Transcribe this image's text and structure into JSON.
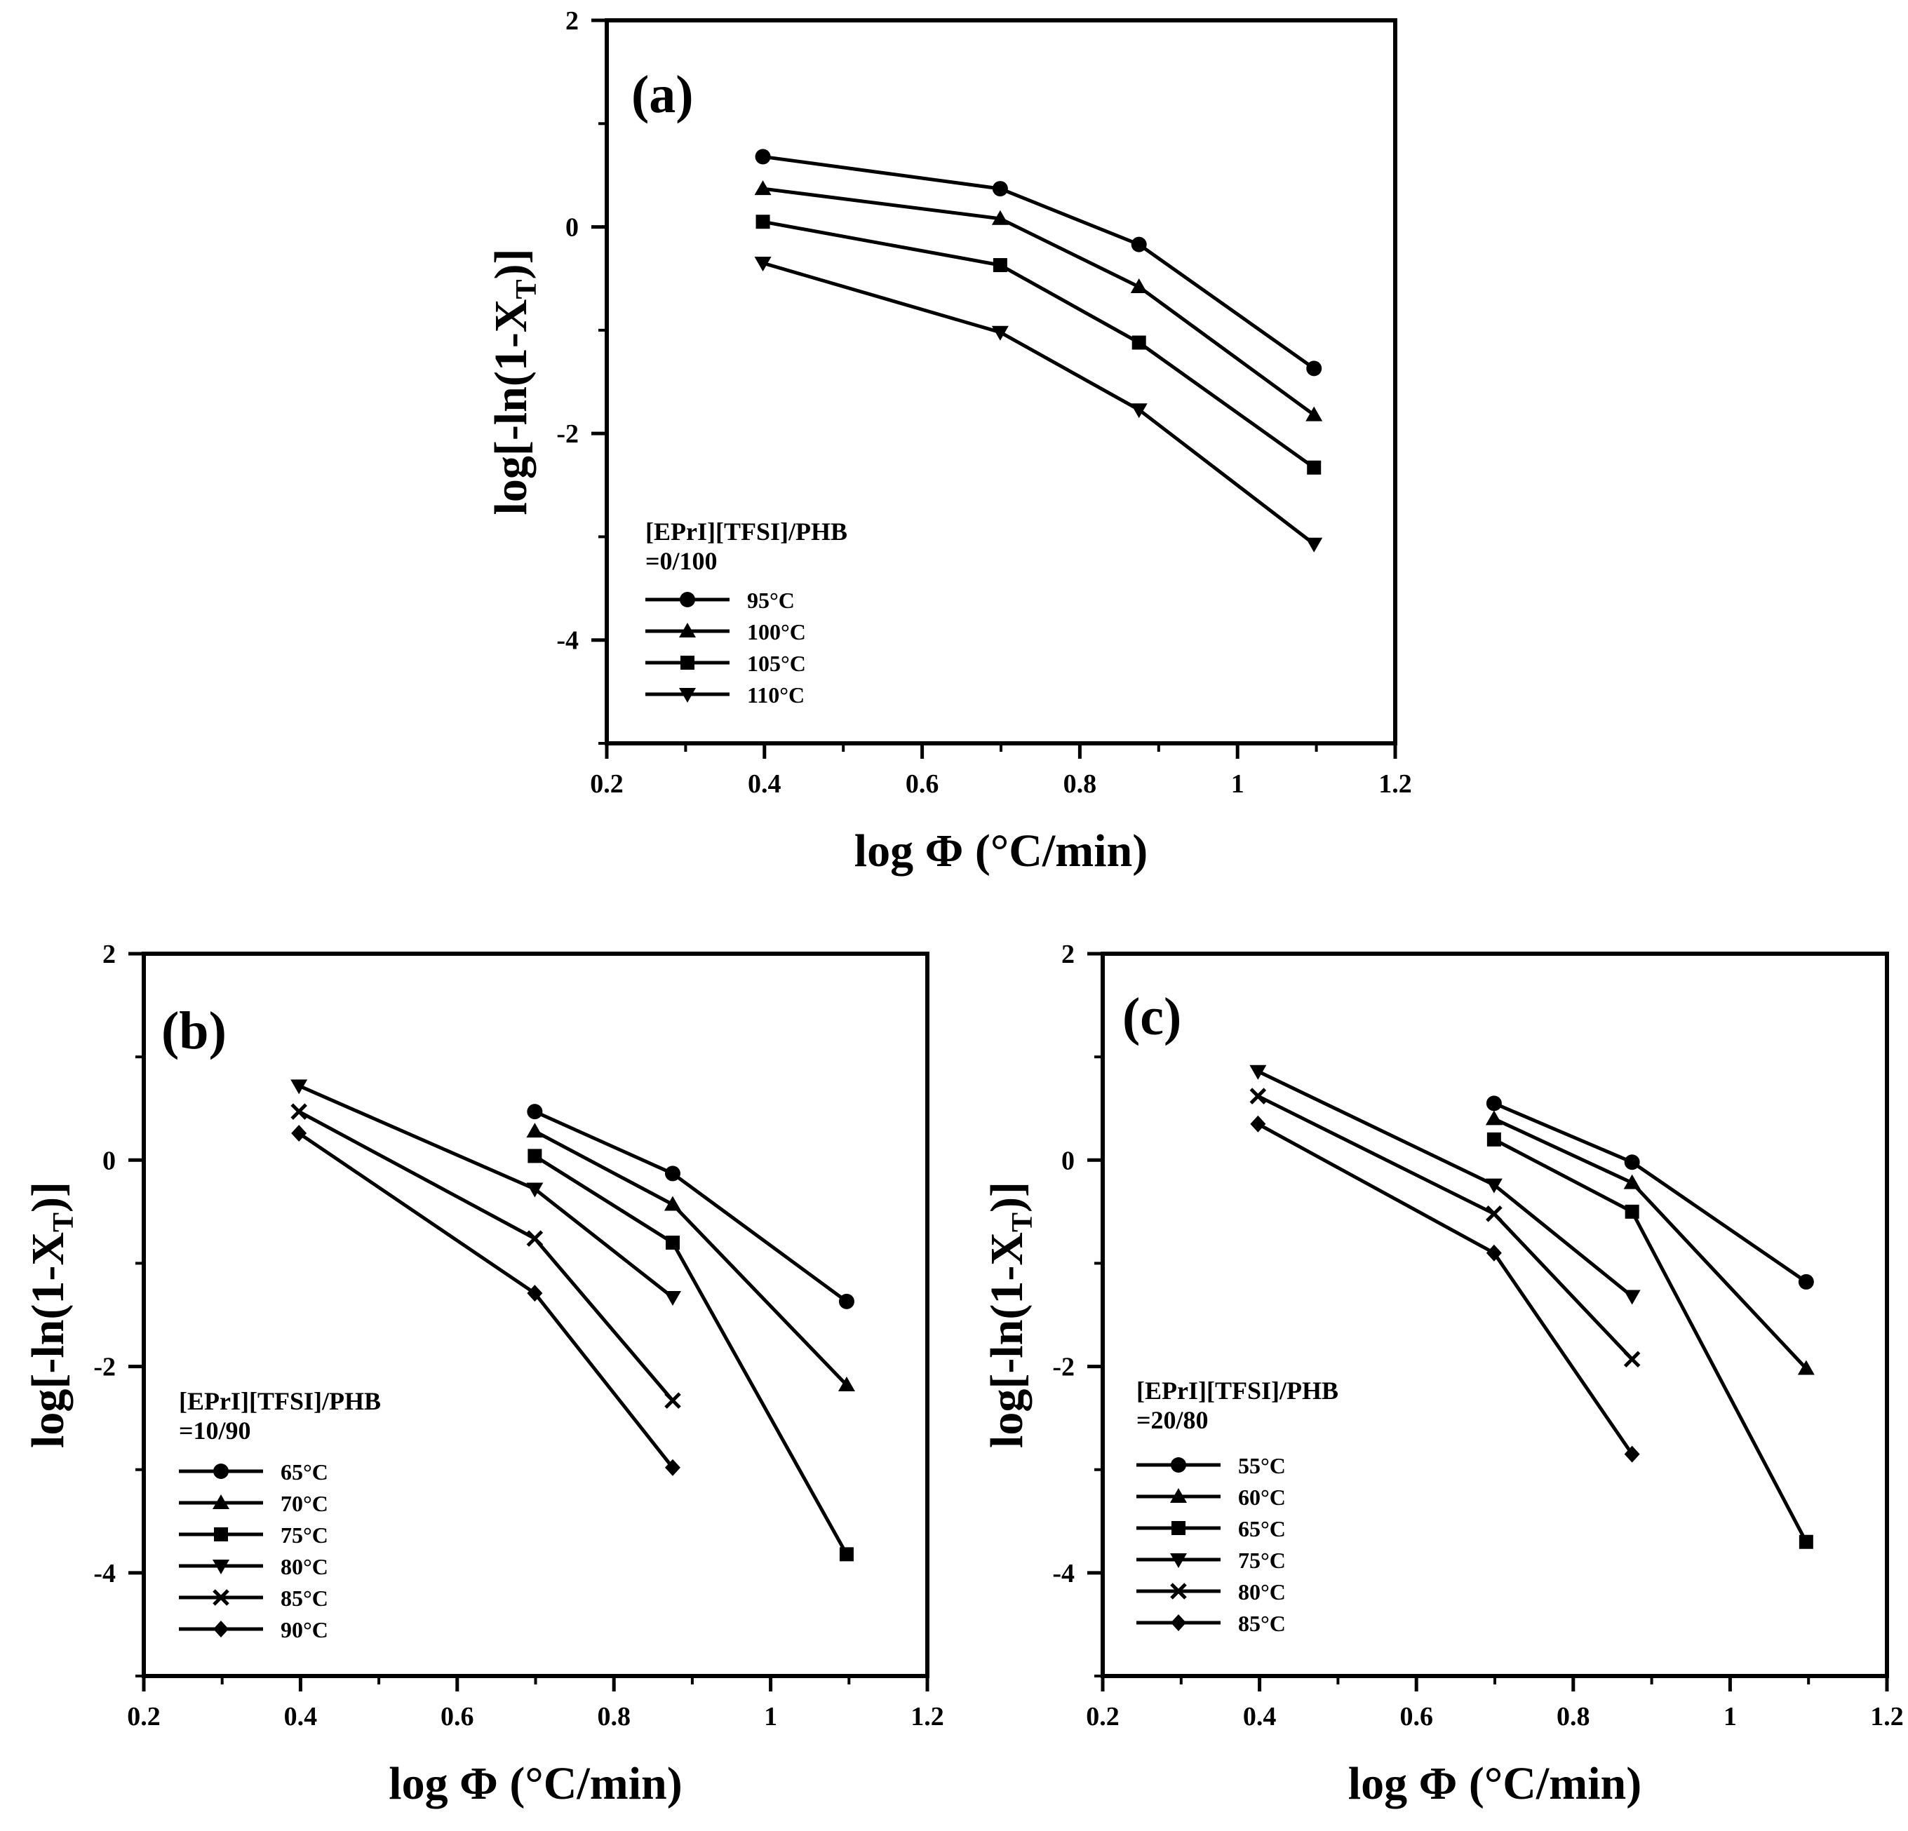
{
  "chart_data": [
    {
      "id": "a",
      "type": "line",
      "panel_label": "(a)",
      "xlabel": "log Φ (°C/min)",
      "ylabel": "log[-ln(1-X",
      "ylabel_sub": "T",
      "ylabel_end": ")]",
      "xlim": [
        0.2,
        1.2
      ],
      "ylim": [
        -5,
        2
      ],
      "xticks": [
        0.2,
        0.4,
        0.6,
        0.8,
        1,
        1.2
      ],
      "xtick_labels": [
        "0.2",
        "0.4",
        "0.6",
        "0.8",
        "1",
        "1.2"
      ],
      "yticks": [
        2,
        0,
        -2,
        -4
      ],
      "ytick_labels": [
        "2",
        "0",
        "-2",
        "-4"
      ],
      "legend_title_1": "[EPrI][TFSI]/PHB",
      "legend_title_2": "=0/100",
      "legend_position": "lower-left",
      "series": [
        {
          "name": "95°C",
          "marker": "circle",
          "x": [
            0.398,
            0.699,
            0.875,
            1.097
          ],
          "y": [
            0.68,
            0.37,
            -0.17,
            -1.37
          ]
        },
        {
          "name": "100°C",
          "marker": "triangle-up",
          "x": [
            0.398,
            0.699,
            0.875,
            1.097
          ],
          "y": [
            0.37,
            0.08,
            -0.58,
            -1.82
          ]
        },
        {
          "name": "105°C",
          "marker": "square",
          "x": [
            0.398,
            0.699,
            0.875,
            1.097
          ],
          "y": [
            0.05,
            -0.37,
            -1.12,
            -2.33
          ]
        },
        {
          "name": "110°C",
          "marker": "triangle-down",
          "x": [
            0.398,
            0.699,
            0.875,
            1.097
          ],
          "y": [
            -0.35,
            -1.02,
            -1.77,
            -3.07
          ]
        }
      ]
    },
    {
      "id": "b",
      "type": "line",
      "panel_label": "(b)",
      "xlabel": "log Φ (°C/min)",
      "ylabel": "log[-ln(1-X",
      "ylabel_sub": "T",
      "ylabel_end": ")]",
      "xlim": [
        0.2,
        1.2
      ],
      "ylim": [
        -5,
        2
      ],
      "xticks": [
        0.2,
        0.4,
        0.6,
        0.8,
        1,
        1.2
      ],
      "xtick_labels": [
        "0.2",
        "0.4",
        "0.6",
        "0.8",
        "1",
        "1.2"
      ],
      "yticks": [
        2,
        0,
        -2,
        -4
      ],
      "ytick_labels": [
        "2",
        "0",
        "-2",
        "-4"
      ],
      "legend_title_1": "[EPrI][TFSI]/PHB",
      "legend_title_2": "=10/90",
      "legend_position": "lower-left",
      "series": [
        {
          "name": "65°C",
          "marker": "circle",
          "x": [
            0.699,
            0.875,
            1.097
          ],
          "y": [
            0.47,
            -0.13,
            -1.37
          ]
        },
        {
          "name": "70°C",
          "marker": "triangle-up",
          "x": [
            0.699,
            0.875,
            1.097
          ],
          "y": [
            0.28,
            -0.43,
            -2.18
          ]
        },
        {
          "name": "75°C",
          "marker": "square",
          "x": [
            0.699,
            0.875,
            1.097
          ],
          "y": [
            0.04,
            -0.8,
            -3.82
          ]
        },
        {
          "name": "80°C",
          "marker": "triangle-down",
          "x": [
            0.398,
            0.699,
            0.875
          ],
          "y": [
            0.72,
            -0.28,
            -1.33
          ]
        },
        {
          "name": "85°C",
          "marker": "x",
          "x": [
            0.398,
            0.699,
            0.875
          ],
          "y": [
            0.47,
            -0.76,
            -2.33
          ]
        },
        {
          "name": "90°C",
          "marker": "diamond",
          "x": [
            0.398,
            0.699,
            0.875
          ],
          "y": [
            0.26,
            -1.29,
            -2.98
          ]
        }
      ]
    },
    {
      "id": "c",
      "type": "line",
      "panel_label": "(c)",
      "xlabel": "log Φ (°C/min)",
      "ylabel": "log[-ln(1-X",
      "ylabel_sub": "T",
      "ylabel_end": ")]",
      "xlim": [
        0.2,
        1.2
      ],
      "ylim": [
        -5,
        2
      ],
      "xticks": [
        0.2,
        0.4,
        0.6,
        0.8,
        1,
        1.2
      ],
      "xtick_labels": [
        "0.2",
        "0.4",
        "0.6",
        "0.8",
        "1",
        "1.2"
      ],
      "yticks": [
        2,
        0,
        -2,
        -4
      ],
      "ytick_labels": [
        "2",
        "0",
        "-2",
        "-4"
      ],
      "legend_title_1": "[EPrI][TFSI]/PHB",
      "legend_title_2": "=20/80",
      "legend_position": "lower-left",
      "series": [
        {
          "name": "55°C",
          "marker": "circle",
          "x": [
            0.699,
            0.875,
            1.097
          ],
          "y": [
            0.55,
            -0.02,
            -1.18
          ]
        },
        {
          "name": "60°C",
          "marker": "triangle-up",
          "x": [
            0.699,
            0.875,
            1.097
          ],
          "y": [
            0.4,
            -0.22,
            -2.02
          ]
        },
        {
          "name": "65°C",
          "marker": "square",
          "x": [
            0.699,
            0.875,
            1.097
          ],
          "y": [
            0.2,
            -0.5,
            -3.7
          ]
        },
        {
          "name": "75°C",
          "marker": "triangle-down",
          "x": [
            0.398,
            0.699,
            0.875
          ],
          "y": [
            0.86,
            -0.24,
            -1.32
          ]
        },
        {
          "name": "80°C",
          "marker": "x",
          "x": [
            0.398,
            0.699,
            0.875
          ],
          "y": [
            0.62,
            -0.52,
            -1.93
          ]
        },
        {
          "name": "85°C",
          "marker": "diamond",
          "x": [
            0.398,
            0.699,
            0.875
          ],
          "y": [
            0.35,
            -0.9,
            -2.85
          ]
        }
      ]
    }
  ]
}
